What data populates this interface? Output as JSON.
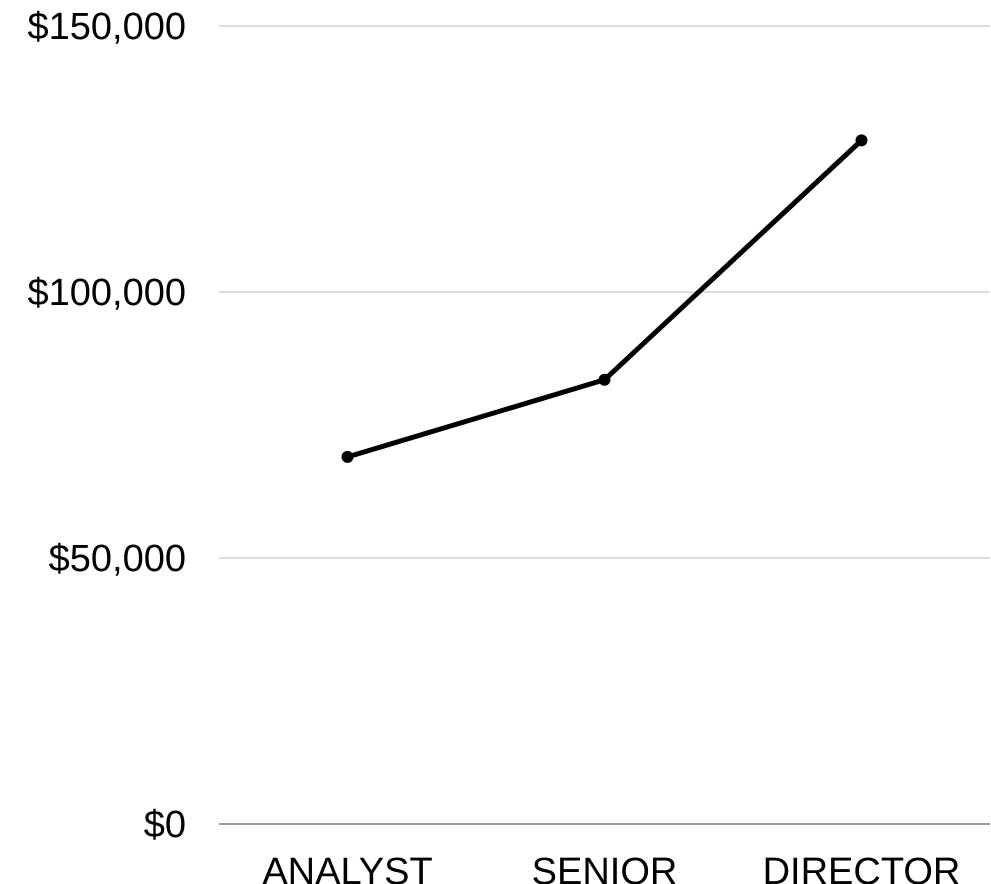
{
  "chart_data": {
    "type": "line",
    "title": "",
    "xlabel": "",
    "ylabel": "",
    "categories": [
      "ANALYST",
      "SENIOR",
      "DIRECTOR"
    ],
    "series": [
      {
        "values": [
          69000,
          83500,
          128500
        ]
      }
    ],
    "ylim": [
      0,
      150000
    ],
    "y_ticks": [
      0,
      50000,
      100000,
      150000
    ],
    "y_tick_labels": [
      "$0",
      "$50,000",
      "$100,000",
      "$150,000"
    ],
    "grid": true,
    "legend": "none",
    "colors": {
      "line": "#000000",
      "grid": "#c8c8c8",
      "axis": "#7f7f7f",
      "text": "#000000"
    }
  }
}
